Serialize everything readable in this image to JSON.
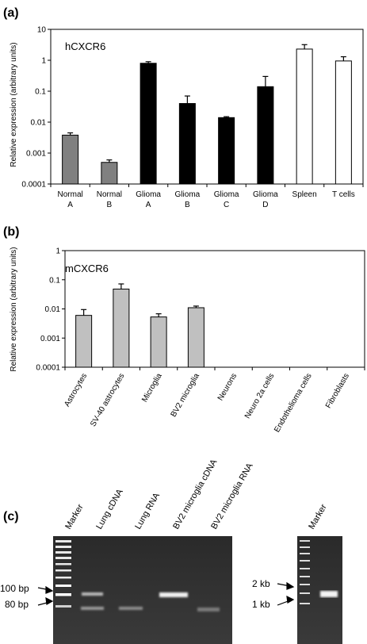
{
  "panel_labels": {
    "a": "(a)",
    "b": "(b)",
    "c": "(c)"
  },
  "ylabel": "Relative expression (arbitrary units)",
  "chart_data": [
    {
      "type": "bar",
      "title": "hCXCR6",
      "ylabel": "Relative expression (arbitrary units)",
      "yscale": "log",
      "ylim": [
        0.0001,
        10
      ],
      "yticks": [
        "10",
        "1",
        "0.1",
        "0.01",
        "0.001",
        "0.0001"
      ],
      "categories": [
        [
          "Normal",
          "A"
        ],
        [
          "Normal",
          "B"
        ],
        [
          "Glioma",
          "A"
        ],
        [
          "Glioma",
          "B"
        ],
        [
          "Glioma",
          "C"
        ],
        [
          "Glioma",
          "D"
        ],
        [
          "Spleen",
          ""
        ],
        [
          "T cells",
          ""
        ]
      ],
      "values": [
        0.0038,
        0.0005,
        0.8,
        0.04,
        0.014,
        0.14,
        2.3,
        0.95
      ],
      "error_upper": [
        0.0045,
        0.0006,
        0.9,
        0.07,
        0.015,
        0.3,
        3.2,
        1.3
      ],
      "colors": [
        "#808080",
        "#808080",
        "#000000",
        "#000000",
        "#000000",
        "#000000",
        "#ffffff",
        "#ffffff"
      ],
      "grid": false
    },
    {
      "type": "bar",
      "title": "mCXCR6",
      "ylabel": "Relative expression (arbitrary units)",
      "yscale": "log",
      "ylim": [
        0.0001,
        1
      ],
      "yticks": [
        "1",
        "0.1",
        "0.01",
        "0.001",
        "0.0001"
      ],
      "categories": [
        "Astrocytes",
        "SV-40 astrocytes",
        "Microglia",
        "BV2 microglia",
        "Neurons",
        "Neuro 2a cells",
        "Endothelioma cells",
        "Fibroblasts"
      ],
      "values": [
        0.006,
        0.048,
        0.0053,
        0.011,
        null,
        null,
        null,
        null
      ],
      "error_upper": [
        0.0095,
        0.072,
        0.0068,
        0.0125,
        null,
        null,
        null,
        null
      ],
      "colors": [
        "#c0c0c0"
      ],
      "grid": false
    }
  ],
  "gel": {
    "lane_labels": [
      "Marker",
      "Lung cDNA",
      "Lung RNA",
      "BV2 microglia cDNA",
      "BV2 microglia RNA"
    ],
    "right_lane_label": "Marker",
    "size_labels_left": [
      "100 bp",
      "80 bp"
    ],
    "size_labels_right": [
      "2 kb",
      "1 kb"
    ]
  }
}
